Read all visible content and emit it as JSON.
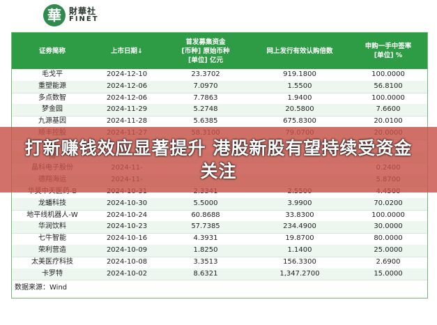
{
  "logo": {
    "mark": "華",
    "name_cn": "財華社",
    "name_en": "FINET"
  },
  "table": {
    "headers": {
      "name": "证券简称",
      "date": "上市日期↓",
      "fund_line1": "首发募集资金",
      "fund_line2": "[币种] 原始币种",
      "fund_line3": "[单位] 亿元",
      "multiple": "网上发行有效认购倍数",
      "rate_line1": "申购一手中签率",
      "rate_line2": "[单位] %"
    },
    "rows": [
      {
        "name": "毛戈平",
        "date": "2024-12-10",
        "fund": "23.3702",
        "multiple": "919.1800",
        "rate": "100.0000"
      },
      {
        "name": "重塑能源",
        "date": "2024-12-06",
        "fund": "7.0970",
        "multiple": "1.5500",
        "rate": "56.8100"
      },
      {
        "name": "多点数智",
        "date": "2024-12-06",
        "fund": "7.7863",
        "multiple": "1.9400",
        "rate": "100.0000"
      },
      {
        "name": "梦金园",
        "date": "2024-11-29",
        "fund": "5.2748",
        "multiple": "20.5800",
        "rate": "7.6600"
      },
      {
        "name": "九源基因",
        "date": "2024-11-28",
        "fund": "5.6385",
        "multiple": "675.8300",
        "rate": "20.0100"
      },
      {
        "name": "顺丰控股",
        "date": "2024-11-27",
        "fund": "58.3100",
        "multiple": "79.0700",
        "rate": "20.0000"
      },
      {
        "name": "",
        "date": "",
        "fund": "",
        "multiple": "",
        "rate": ""
      },
      {
        "name": "微",
        "date": "",
        "fund": "",
        "multiple": "",
        "rate": ""
      },
      {
        "name": "晶科电子股份",
        "date": "2024-11-",
        "fund": "",
        "multiple": "",
        "rate": "0.2400"
      },
      {
        "name": "德翔海运",
        "date": "2024-11-",
        "fund": "",
        "multiple": "",
        "rate": "5.8700"
      },
      {
        "name": "华昊中天医药-B",
        "date": "2024-10-31",
        "fund": "2.3341",
        "multiple": "2.5500",
        "rate": "4.4500"
      },
      {
        "name": "龙蟠科技",
        "date": "2024-10-30",
        "fund": "5.5000",
        "multiple": "3.9900",
        "rate": "70.0200"
      },
      {
        "name": "地平线机器人-W",
        "date": "2024-10-24",
        "fund": "60.8688",
        "multiple": "33.8300",
        "rate": "100.0000"
      },
      {
        "name": "华润饮料",
        "date": "2024-10-23",
        "fund": "57.7385",
        "multiple": "234.4900",
        "rate": "30.0000"
      },
      {
        "name": "七牛智能",
        "date": "2024-10-16",
        "fund": "4.3931",
        "multiple": "19.8700",
        "rate": "80.0000"
      },
      {
        "name": "荣利营造",
        "date": "2024-10-09",
        "fund": "1.8250",
        "multiple": "1.1400",
        "rate": "25.0000"
      },
      {
        "name": "太美医疗科技",
        "date": "2024-10-08",
        "fund": "3.3513",
        "multiple": "156.3300",
        "rate": "2.6900"
      },
      {
        "name": "卡罗特",
        "date": "2024-10-02",
        "fund": "8.6321",
        "multiple": "1,347.2700",
        "rate": "15.0000"
      }
    ],
    "source": "数据来源：Wind"
  },
  "banner": {
    "title": "打新赚钱效应显著提升 港股新股有望持续受资金关注"
  },
  "colors": {
    "header_green": "#2e9c45",
    "banner_red": "#c85248"
  }
}
